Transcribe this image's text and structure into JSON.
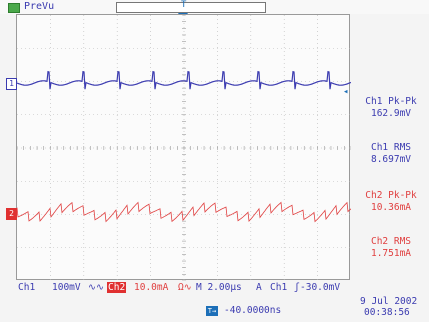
{
  "status": {
    "run_state": "PreVu",
    "trigger_mark": "T"
  },
  "channels": {
    "ch1_marker": "1",
    "ch2_marker": "2",
    "ch1_color": "#3b3bb0",
    "ch2_color": "#e04040"
  },
  "measurements": [
    {
      "label": "Ch1 Pk-Pk",
      "value": "162.9mV"
    },
    {
      "label": "Ch1 RMS",
      "value": "8.697mV"
    },
    {
      "label": "Ch2 Pk-Pk",
      "value": "10.36mA"
    },
    {
      "label": "Ch2 RMS",
      "value": "1.751mA"
    }
  ],
  "readout": {
    "ch1_label": "Ch1",
    "ch1_scale": "100mV",
    "ch1_bw": "∿∿",
    "ch2_label": "Ch2",
    "ch2_scale": "10.0mA",
    "ch2_bw": "Ω∿",
    "timebase": "M 2.00µs",
    "trigger_mode": "A",
    "trigger_source": "Ch1",
    "trigger_slope": "ʃ",
    "trigger_level": "-30.0mV"
  },
  "bottom": {
    "hpos_icon": "T→",
    "hpos_value": "-40.0000ns",
    "date": "9 Jul  2002",
    "time": "00:38:56"
  },
  "icons": {
    "run_state": "run-state-icon",
    "trigger_position": "trigger-position-icon",
    "horizontal_position": "horizontal-position-icon"
  }
}
